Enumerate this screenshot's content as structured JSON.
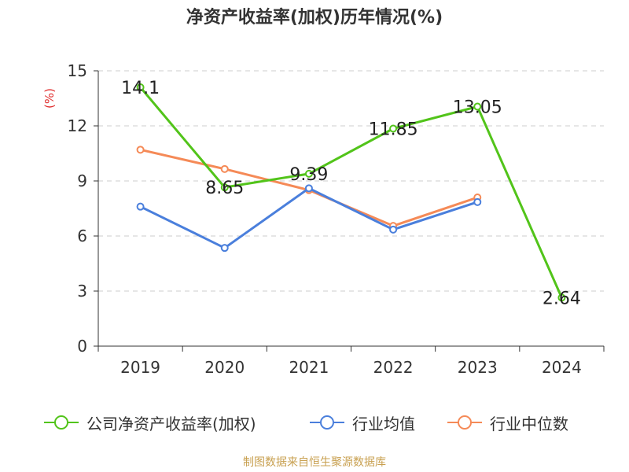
{
  "title": "净资产收益率(加权)历年情况(%)",
  "source_note": "制图数据来自恒生聚源数据库",
  "chart_data": {
    "type": "line",
    "title": "净资产收益率(加权)历年情况(%)",
    "ylabel": "(%)",
    "xlabel": "",
    "categories": [
      "2019",
      "2020",
      "2021",
      "2022",
      "2023",
      "2024"
    ],
    "ylim": [
      0,
      15
    ],
    "yticks": [
      0,
      3,
      6,
      9,
      12,
      15
    ],
    "grid": true,
    "legend_position": "bottom",
    "series": [
      {
        "name": "公司净资产收益率(加权)",
        "color": "#52c41a",
        "values": [
          14.1,
          8.65,
          9.39,
          11.85,
          13.05,
          2.64
        ],
        "labels": [
          "14.1",
          "8.65",
          "9.39",
          "11.85",
          "13.05",
          "2.64"
        ]
      },
      {
        "name": "行业均值",
        "color": "#4a7fdc",
        "values": [
          7.6,
          5.35,
          8.6,
          6.35,
          7.85,
          null
        ]
      },
      {
        "name": "行业中位数",
        "color": "#f58a57",
        "values": [
          10.7,
          9.65,
          8.5,
          6.55,
          8.1,
          null
        ]
      }
    ]
  }
}
